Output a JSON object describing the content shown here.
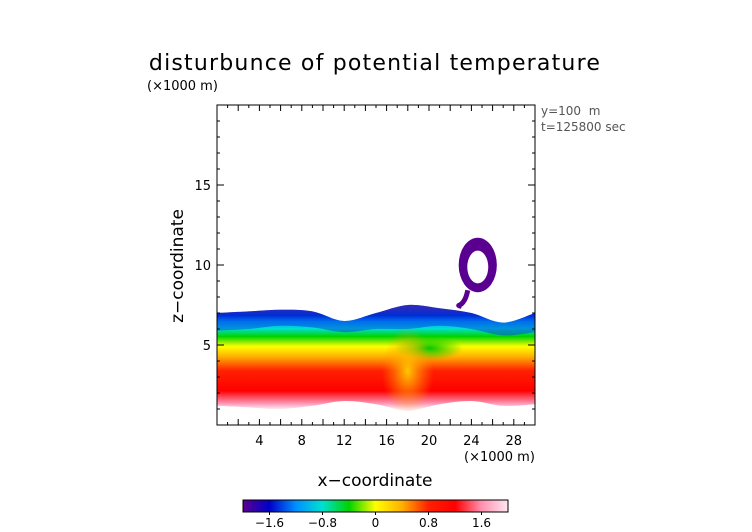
{
  "chart_data": {
    "type": "heatmap",
    "title": "disturbunce of potential temperature",
    "subtitle": "(×1000 m)",
    "xlabel": "x−coordinate",
    "ylabel": "z−coordinate",
    "x_unit": "(×1000 m)",
    "annotations": [
      "y=100  m",
      "t=125800 sec"
    ],
    "xlim": [
      0,
      30
    ],
    "ylim": [
      0,
      20
    ],
    "x_ticks": [
      4,
      8,
      12,
      16,
      20,
      24,
      28
    ],
    "y_ticks": [
      5,
      10,
      15
    ],
    "x_tick_labels": [
      "4",
      "8",
      "12",
      "16",
      "20",
      "24",
      "28"
    ],
    "y_tick_labels": [
      "5",
      "10",
      "15"
    ],
    "colorbar": {
      "range": [
        -2,
        2
      ],
      "ticks": [
        -1.6,
        -0.8,
        0,
        0.8,
        1.6
      ],
      "tick_labels": [
        "−1.6",
        "−0.8",
        "0",
        "0.8",
        "1.6"
      ],
      "colors": [
        "#5a0090",
        "#0000c8",
        "#0090ff",
        "#00e0d0",
        "#00d200",
        "#ffff00",
        "#ffb000",
        "#ff2000",
        "#ff0000",
        "#ff90b0",
        "#ffe8f0"
      ]
    },
    "layer": {
      "x": [
        0,
        3,
        6,
        9,
        12,
        15,
        18,
        21,
        24,
        27,
        30
      ],
      "top_z": [
        7.0,
        7.1,
        7.2,
        7.1,
        6.5,
        7.0,
        7.5,
        7.3,
        7.0,
        6.4,
        7.0
      ],
      "bottom_z": [
        1.2,
        1.1,
        1.0,
        1.2,
        1.5,
        1.3,
        0.9,
        1.3,
        1.5,
        1.2,
        1.3
      ],
      "blue_band_bottom_z": [
        5.9,
        6.0,
        6.2,
        6.1,
        5.8,
        6.0,
        6.0,
        6.2,
        6.0,
        5.6,
        5.8
      ],
      "green_peak": {
        "x": 20,
        "z": 4.8
      },
      "yellow_plume": {
        "x": 18,
        "z": 1.5
      }
    },
    "plume": {
      "center_x": 24.6,
      "center_z": 10.0,
      "width_x": 3.6,
      "height_z": 3.4,
      "value": -2.0
    }
  }
}
